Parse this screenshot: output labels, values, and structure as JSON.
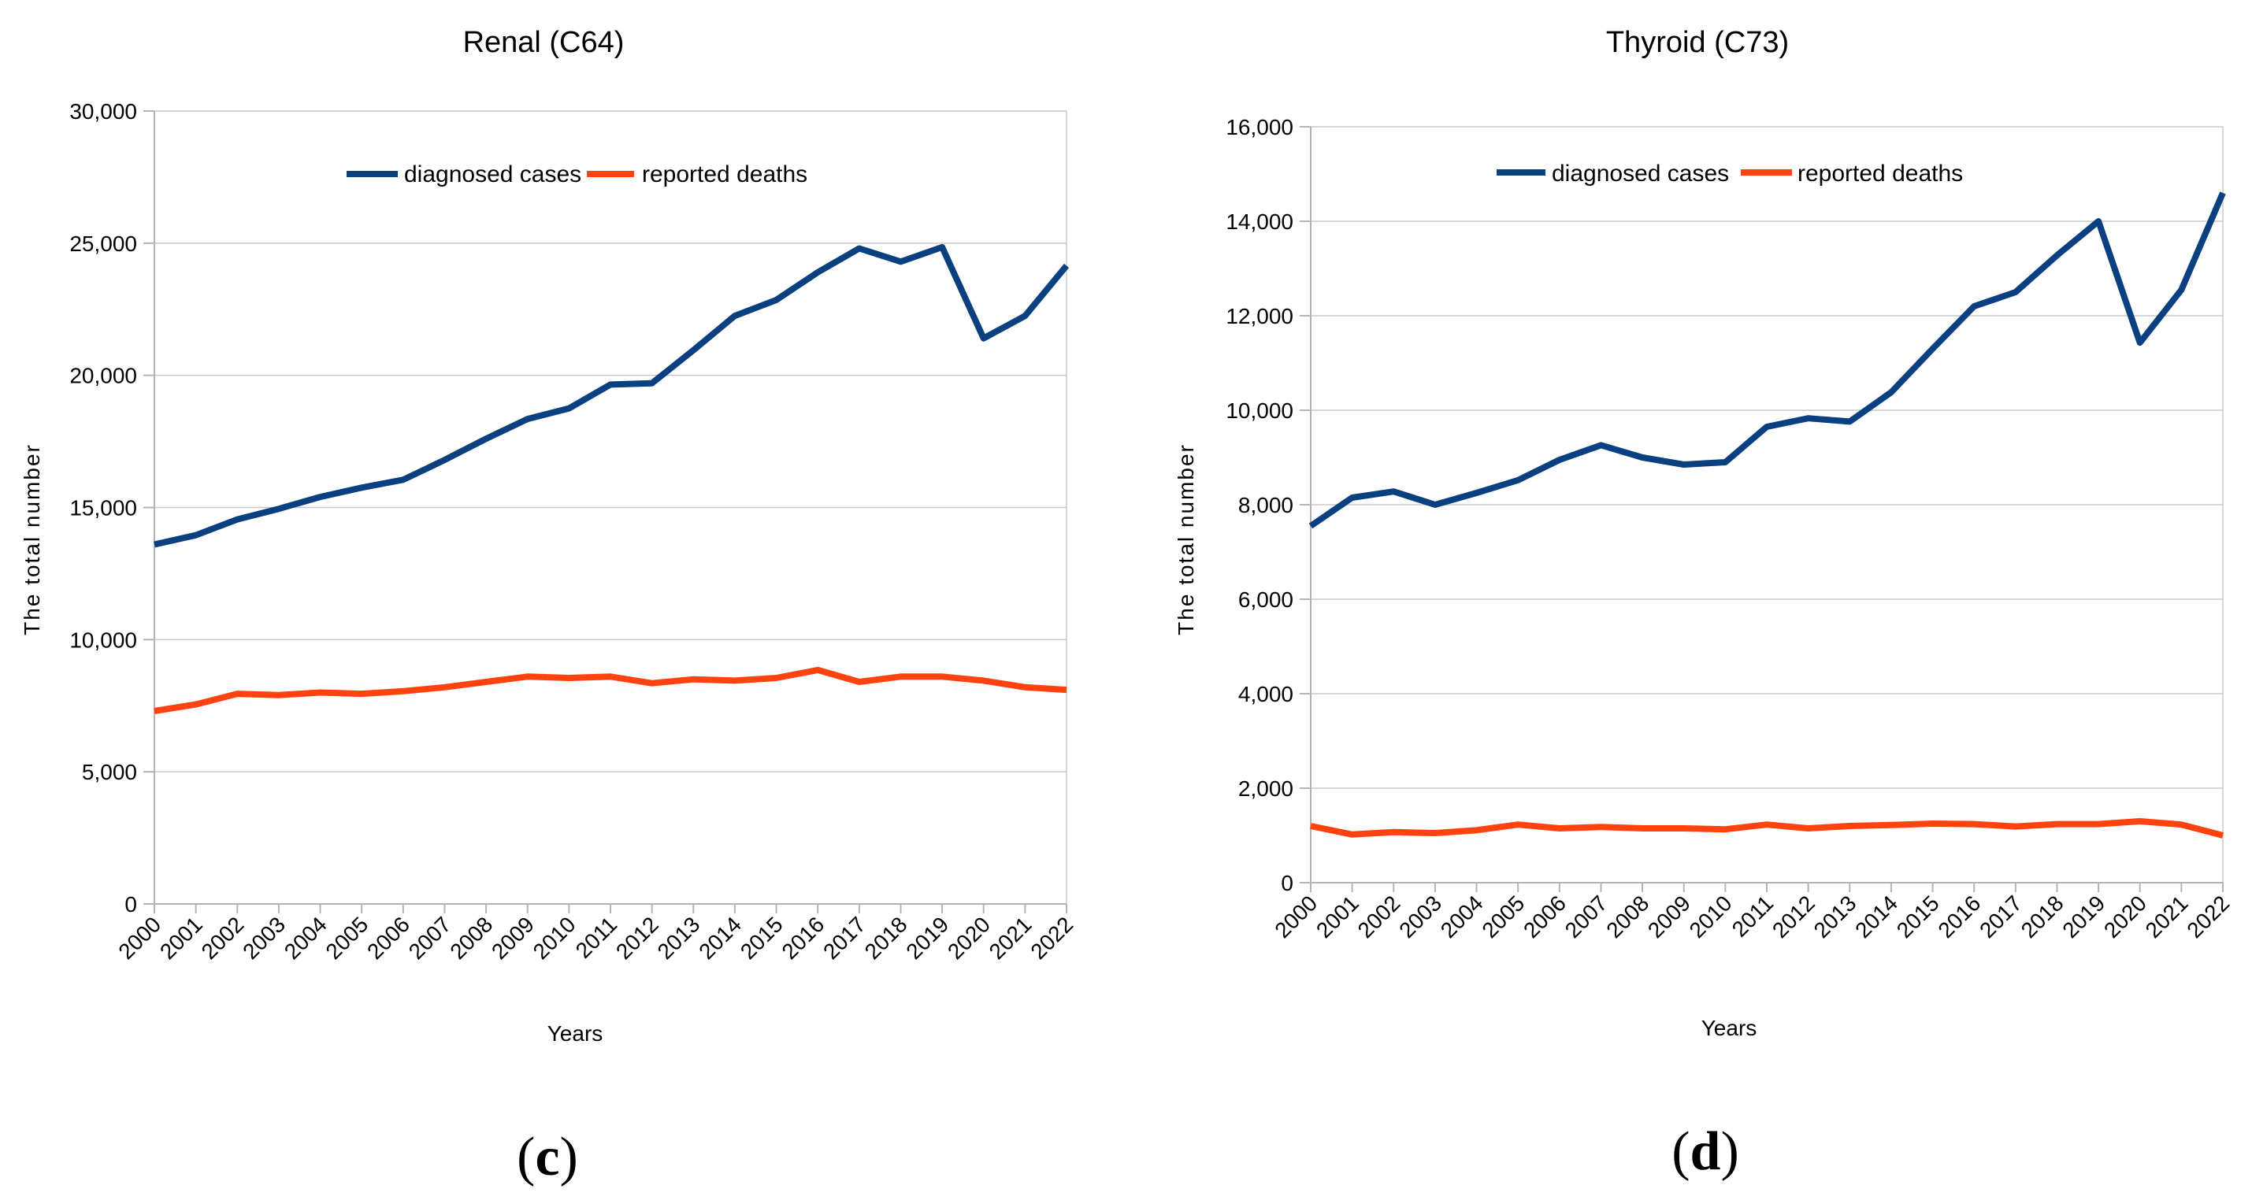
{
  "colors": {
    "cases": "#0a4080",
    "deaths": "#ff420e"
  },
  "chart_data": [
    {
      "type": "line",
      "title": "Renal (C64)",
      "xlabel": "Years",
      "ylabel": "The total number",
      "categories": [
        "2000",
        "2001",
        "2002",
        "2003",
        "2004",
        "2005",
        "2006",
        "2007",
        "2008",
        "2009",
        "2010",
        "2011",
        "2012",
        "2013",
        "2014",
        "2015",
        "2016",
        "2017",
        "2018",
        "2019",
        "2020",
        "2021",
        "2022"
      ],
      "ylim": [
        0,
        30000
      ],
      "yticks": [
        0,
        5000,
        10000,
        15000,
        20000,
        25000,
        30000
      ],
      "ytick_labels": [
        "0",
        "5,000",
        "10,000",
        "15,000",
        "20,000",
        "25,000",
        "30,000"
      ],
      "legend": "top-center",
      "grid": true,
      "panel_label": "c",
      "series": [
        {
          "name": "diagnosed cases",
          "color_key": "cases",
          "values": [
            13600,
            13950,
            14550,
            14950,
            15400,
            15750,
            16050,
            16800,
            17600,
            18350,
            18750,
            19650,
            19700,
            20950,
            22250,
            22850,
            23900,
            24800,
            24300,
            24850,
            21400,
            22250,
            24150
          ]
        },
        {
          "name": "reported deaths",
          "color_key": "deaths",
          "values": [
            7300,
            7550,
            7950,
            7900,
            8000,
            7950,
            8050,
            8200,
            8400,
            8600,
            8550,
            8600,
            8350,
            8500,
            8450,
            8550,
            8850,
            8400,
            8600,
            8600,
            8450,
            8200,
            8100
          ]
        }
      ]
    },
    {
      "type": "line",
      "title": "Thyroid (C73)",
      "xlabel": "Years",
      "ylabel": "The total number",
      "categories": [
        "2000",
        "2001",
        "2002",
        "2003",
        "2004",
        "2005",
        "2006",
        "2007",
        "2008",
        "2009",
        "2010",
        "2011",
        "2012",
        "2013",
        "2014",
        "2015",
        "2016",
        "2017",
        "2018",
        "2019",
        "2020",
        "2021",
        "2022"
      ],
      "ylim": [
        0,
        16000
      ],
      "yticks": [
        0,
        2000,
        4000,
        6000,
        8000,
        10000,
        12000,
        14000,
        16000
      ],
      "ytick_labels": [
        "0",
        "2,000",
        "4,000",
        "6,000",
        "8,000",
        "10,000",
        "12,000",
        "14,000",
        "16,000"
      ],
      "legend": "top-center",
      "grid": true,
      "panel_label": "d",
      "series": [
        {
          "name": "diagnosed cases",
          "color_key": "cases",
          "values": [
            7550,
            8150,
            8280,
            8000,
            8250,
            8520,
            8950,
            9260,
            9000,
            8850,
            8900,
            9650,
            9830,
            9760,
            10380,
            11300,
            12200,
            12500,
            13280,
            14000,
            11430,
            12550,
            14600
          ]
        },
        {
          "name": "reported deaths",
          "color_key": "deaths",
          "values": [
            1200,
            1020,
            1070,
            1050,
            1110,
            1230,
            1150,
            1180,
            1150,
            1150,
            1130,
            1230,
            1150,
            1200,
            1220,
            1250,
            1240,
            1190,
            1240,
            1240,
            1300,
            1230,
            1000
          ]
        }
      ]
    }
  ]
}
